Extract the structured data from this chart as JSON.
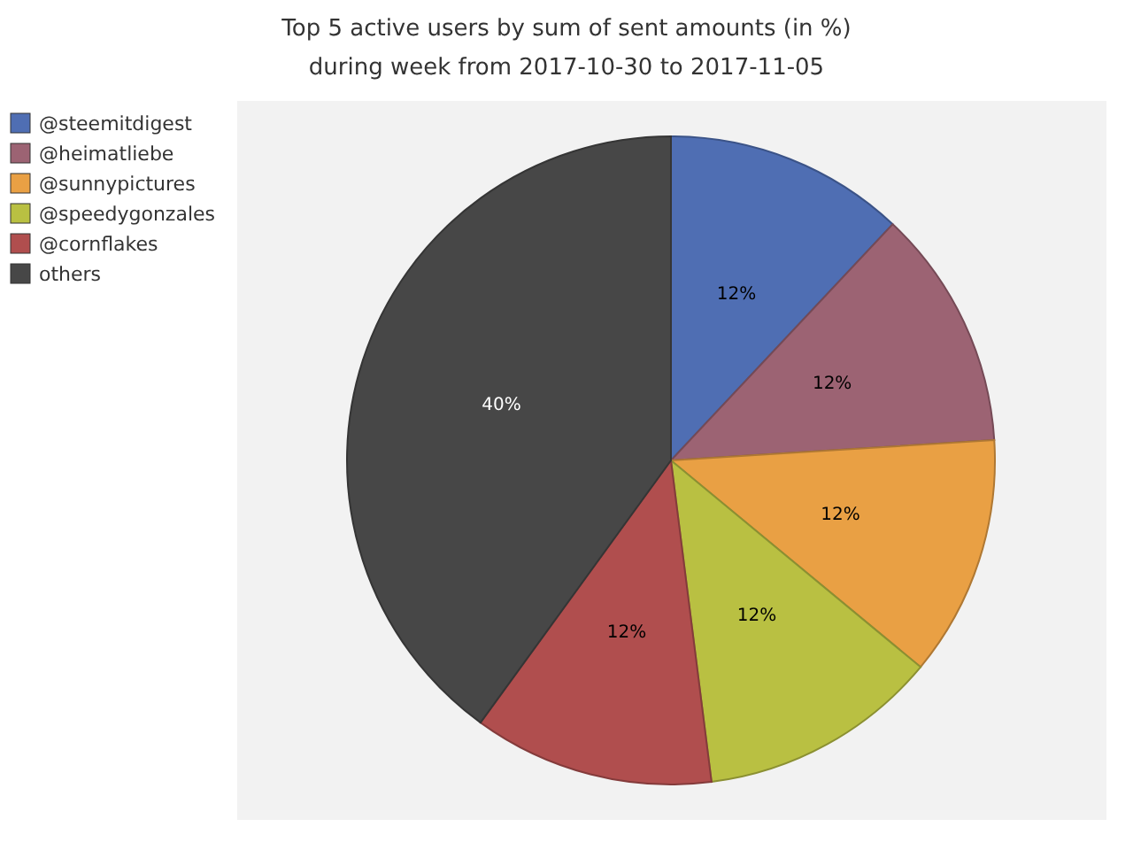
{
  "chart_data": {
    "type": "pie",
    "title": "Top 5 active users by sum of sent amounts (in %)",
    "subtitle": "during week from 2017-10-30 to 2017-11-05",
    "categories": [
      "@steemitdigest",
      "@heimatliebe",
      "@sunnypictures",
      "@speedygonzales",
      "@cornflakes",
      "others"
    ],
    "values": [
      12,
      12,
      12,
      12,
      12,
      40
    ],
    "colors": [
      "#4f6eb3",
      "#9c6373",
      "#e9a044",
      "#b9c042",
      "#b04e4e",
      "#474747"
    ],
    "value_labels": [
      "12%",
      "12%",
      "12%",
      "12%",
      "12%",
      "40%"
    ],
    "legend": "left"
  }
}
